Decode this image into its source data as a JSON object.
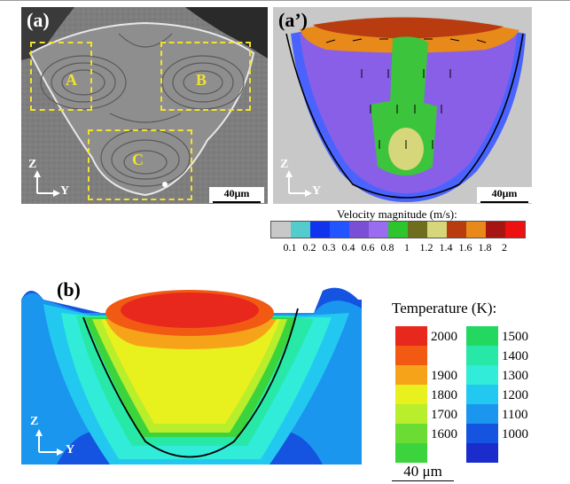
{
  "panel_a": {
    "label": "(a)",
    "zones": [
      {
        "label": "A"
      },
      {
        "label": "B"
      },
      {
        "label": "C"
      }
    ],
    "scale_label": "40μm",
    "axis_z": "Z",
    "axis_y": "Y"
  },
  "panel_a2": {
    "label": "(a’)",
    "scale_label": "40μm",
    "axis_z": "Z",
    "axis_y": "Y"
  },
  "velocity_legend": {
    "title": "Velocity magnitude (m/s):",
    "ticks": [
      "0.1",
      "0.2",
      "0.3",
      "0.4",
      "0.6",
      "0.8",
      "1",
      "1.2",
      "1.4",
      "1.6",
      "1.8",
      "2"
    ],
    "colors": [
      "#c8c8c8",
      "#55cccc",
      "#1133ee",
      "#2255ff",
      "#7a4fd6",
      "#9a6cf0",
      "#2ec42e",
      "#6e6e1e",
      "#d6d67a",
      "#b83c10",
      "#e88a1a",
      "#a61414",
      "#ee1111"
    ]
  },
  "panel_b": {
    "label": "(b)",
    "axis_z": "Z",
    "axis_y": "Y"
  },
  "temperature_legend": {
    "title": "Temperature (K):",
    "left": [
      {
        "value": "2000",
        "color": "#e8281c"
      },
      {
        "value": "",
        "color": "#f25a14"
      },
      {
        "value": "1900",
        "color": "#f7a31a"
      },
      {
        "value": "1800",
        "color": "#e8f01e"
      },
      {
        "value": "1700",
        "color": "#b8ee2c"
      },
      {
        "value": "1600",
        "color": "#6adc34"
      },
      {
        "value": "",
        "color": "#3cd43c"
      }
    ],
    "right": [
      {
        "value": "1500",
        "color": "#22d860"
      },
      {
        "value": "1400",
        "color": "#28e8a8"
      },
      {
        "value": "1300",
        "color": "#30ecd8"
      },
      {
        "value": "1200",
        "color": "#22c8f0"
      },
      {
        "value": "1100",
        "color": "#1a96ee"
      },
      {
        "value": "1000",
        "color": "#1454e0"
      },
      {
        "value": "",
        "color": "#1a2ccc"
      }
    ],
    "scale_label": "40 μm"
  }
}
